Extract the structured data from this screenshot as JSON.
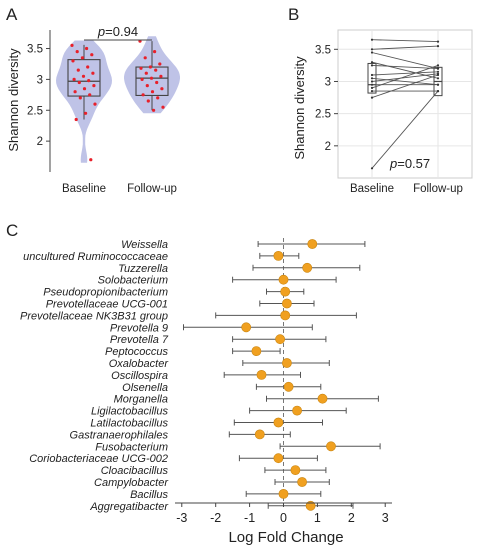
{
  "panels": {
    "a": "A",
    "b": "B",
    "c": "C"
  },
  "colors": {
    "violin": "#bcc0e6",
    "point": "#e8202a",
    "box": "#444444",
    "line": "#555555",
    "estimate": "#f0a020",
    "estimate_edge": "#c98510",
    "grid": "#e6e6e6",
    "dash": "#777777"
  },
  "chart_data": [
    {
      "type": "violin",
      "panel": "A",
      "ylabel": "Shannon diversity",
      "categories": [
        "Baseline",
        "Follow-up"
      ],
      "ylim": [
        1.5,
        3.8
      ],
      "yticks": [
        2,
        2.5,
        3,
        3.5
      ],
      "annotation": {
        "prefix": "p",
        "text": "=0.94"
      },
      "boxes": [
        {
          "group": "Baseline",
          "min": 2.35,
          "q1": 2.73,
          "median": 2.97,
          "q3": 3.32,
          "max": 3.56
        },
        {
          "group": "Follow-up",
          "min": 2.5,
          "q1": 2.74,
          "median": 3.02,
          "q3": 3.2,
          "max": 3.62
        }
      ],
      "points": [
        {
          "group": "Baseline",
          "values": [
            3.55,
            3.5,
            3.45,
            3.4,
            3.35,
            3.3,
            3.2,
            3.15,
            3.1,
            3.05,
            3.0,
            2.98,
            2.95,
            2.9,
            2.85,
            2.8,
            2.75,
            2.7,
            2.6,
            2.45,
            2.35,
            1.7
          ]
        },
        {
          "group": "Follow-up",
          "values": [
            3.62,
            3.45,
            3.35,
            3.25,
            3.2,
            3.18,
            3.15,
            3.1,
            3.05,
            3.02,
            3.0,
            2.95,
            2.9,
            2.85,
            2.8,
            2.75,
            2.7,
            2.65,
            2.55,
            2.5
          ]
        }
      ]
    },
    {
      "type": "line",
      "panel": "B",
      "ylabel": "Shannon diversity",
      "categories": [
        "Baseline",
        "Follow-up"
      ],
      "ylim": [
        1.5,
        3.8
      ],
      "yticks": [
        2,
        2.5,
        3,
        3.5
      ],
      "annotation": {
        "prefix": "p",
        "text": "=0.57"
      },
      "grid": true,
      "boxes": [
        {
          "group": "Baseline",
          "q1": 2.82,
          "median": 2.95,
          "q3": 3.28
        },
        {
          "group": "Follow-up",
          "q1": 2.78,
          "median": 3.0,
          "q3": 3.22
        }
      ],
      "pairs": [
        [
          3.65,
          3.62
        ],
        [
          3.5,
          3.55
        ],
        [
          3.45,
          3.2
        ],
        [
          3.3,
          3.05
        ],
        [
          3.25,
          3.2
        ],
        [
          3.1,
          3.15
        ],
        [
          3.05,
          2.95
        ],
        [
          3.0,
          3.12
        ],
        [
          2.95,
          2.95
        ],
        [
          2.9,
          3.25
        ],
        [
          2.85,
          2.85
        ],
        [
          2.75,
          3.1
        ],
        [
          1.65,
          2.85
        ]
      ]
    },
    {
      "type": "scatter",
      "panel": "C",
      "xlabel": "Log Fold Change",
      "xlim": [
        -3.2,
        3.2
      ],
      "xticks": [
        -3,
        -2,
        -1,
        0,
        1,
        2,
        3
      ],
      "grid": false,
      "taxa": [
        {
          "name": "Weissella",
          "lfc": 0.85,
          "lo": -0.75,
          "hi": 2.4
        },
        {
          "name": "uncultured Ruminococcaceae",
          "lfc": -0.15,
          "lo": -0.7,
          "hi": 0.45
        },
        {
          "name": "Tuzzerella",
          "lfc": 0.7,
          "lo": -0.9,
          "hi": 2.25
        },
        {
          "name": "Solobacterium",
          "lfc": 0.0,
          "lo": -1.5,
          "hi": 1.55
        },
        {
          "name": "Pseudopropionibacterium",
          "lfc": 0.05,
          "lo": -0.5,
          "hi": 0.6
        },
        {
          "name": "Prevotellaceae UCG-001",
          "lfc": 0.1,
          "lo": -0.7,
          "hi": 0.9
        },
        {
          "name": "Prevotellaceae NK3B31 group",
          "lfc": 0.05,
          "lo": -2.0,
          "hi": 2.15
        },
        {
          "name": "Prevotella 9",
          "lfc": -1.1,
          "lo": -2.95,
          "hi": 0.85
        },
        {
          "name": "Prevotella 7",
          "lfc": -0.1,
          "lo": -1.5,
          "hi": 1.25
        },
        {
          "name": "Peptococcus",
          "lfc": -0.8,
          "lo": -1.5,
          "hi": -0.1
        },
        {
          "name": "Oxalobacter",
          "lfc": 0.1,
          "lo": -1.2,
          "hi": 1.35
        },
        {
          "name": "Oscillospira",
          "lfc": -0.65,
          "lo": -1.75,
          "hi": 0.5
        },
        {
          "name": "Olsenella",
          "lfc": 0.15,
          "lo": -0.8,
          "hi": 1.1
        },
        {
          "name": "Morganella",
          "lfc": 1.15,
          "lo": -0.5,
          "hi": 2.8
        },
        {
          "name": "Ligilactobacillus",
          "lfc": 0.4,
          "lo": -1.0,
          "hi": 1.85
        },
        {
          "name": "Latilactobacillus",
          "lfc": -0.15,
          "lo": -1.45,
          "hi": 1.15
        },
        {
          "name": "Gastranaerophilales",
          "lfc": -0.7,
          "lo": -1.6,
          "hi": 0.2
        },
        {
          "name": "Fusobacterium",
          "lfc": 1.4,
          "lo": -0.1,
          "hi": 2.85
        },
        {
          "name": "Coriobacteriaceae UCG-002",
          "lfc": -0.15,
          "lo": -1.3,
          "hi": 1.0
        },
        {
          "name": "Cloacibacillus",
          "lfc": 0.35,
          "lo": -0.55,
          "hi": 1.25
        },
        {
          "name": "Campylobacter",
          "lfc": 0.55,
          "lo": -0.25,
          "hi": 1.35
        },
        {
          "name": "Bacillus",
          "lfc": 0.0,
          "lo": -1.1,
          "hi": 1.1
        },
        {
          "name": "Aggregatibacter",
          "lfc": 0.8,
          "lo": -0.45,
          "hi": 2.05
        }
      ]
    }
  ]
}
